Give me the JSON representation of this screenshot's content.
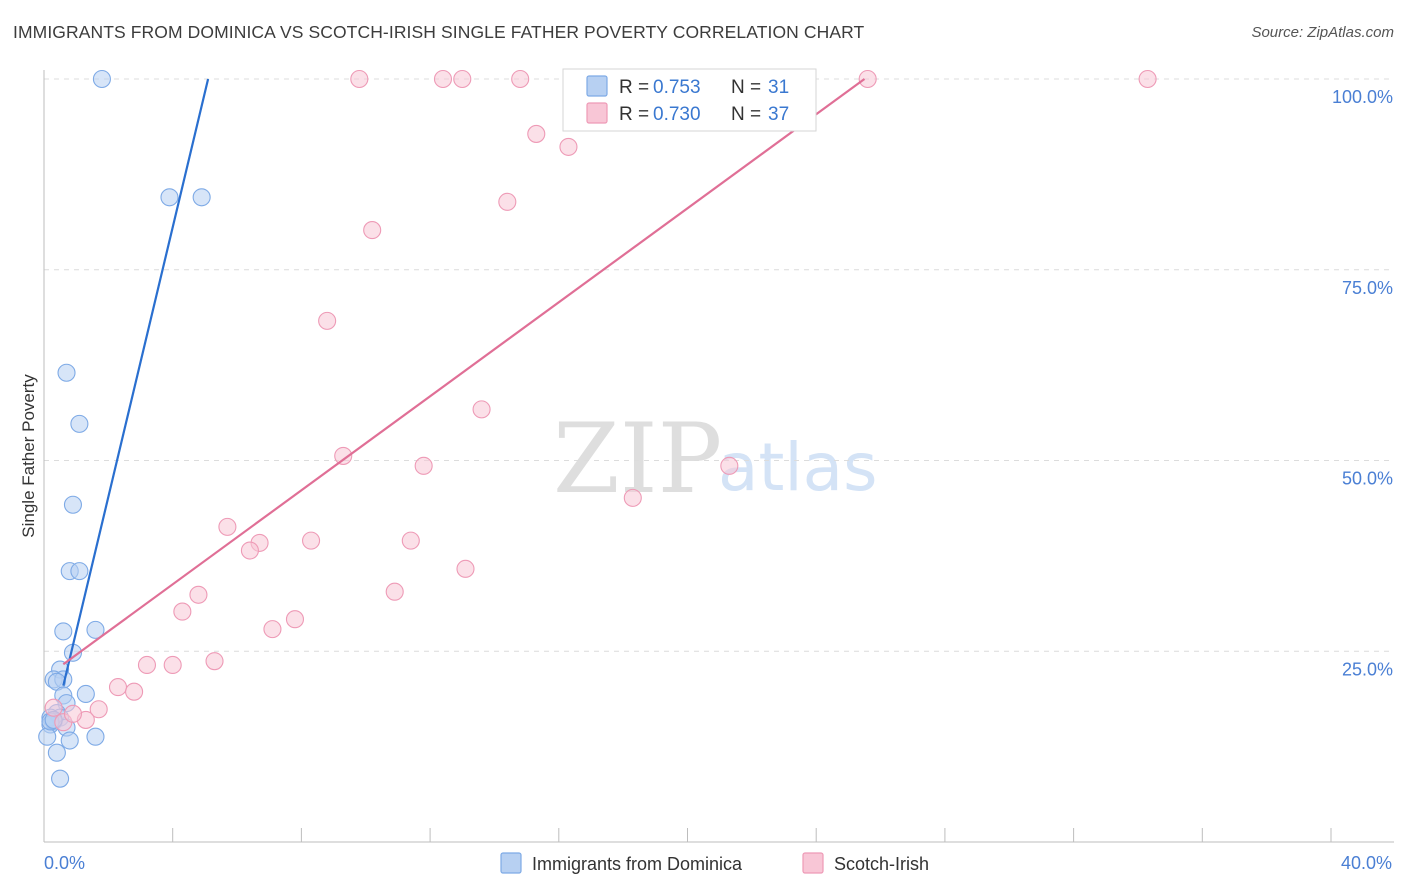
{
  "title": "IMMIGRANTS FROM DOMINICA VS SCOTCH-IRISH SINGLE FATHER POVERTY CORRELATION CHART",
  "source": "Source: ZipAtlas.com",
  "watermark": {
    "zip": "ZIP",
    "atlas": "atlas"
  },
  "chart_data": {
    "type": "scatter",
    "title": "IMMIGRANTS FROM DOMINICA VS SCOTCH-IRISH SINGLE FATHER POVERTY CORRELATION CHART",
    "xlabel": "",
    "ylabel": "Single Father Poverty",
    "xlim": [
      0,
      40
    ],
    "ylim": [
      0,
      100
    ],
    "x_tick_labels": [
      "0.0%",
      "40.0%"
    ],
    "y_ticks": [
      25,
      50,
      75,
      100
    ],
    "y_tick_labels": [
      "25.0%",
      "50.0%",
      "75.0%",
      "100.0%"
    ],
    "grid": true,
    "legend_position": "top-center",
    "series": [
      {
        "name": "Immigrants from Dominica",
        "color": "#7eaae6",
        "fill": "#b7d0f2",
        "line_color": "#2a6fcf",
        "R": "0.753",
        "N": "31",
        "trend": {
          "x": [
            0.6,
            5.1
          ],
          "y": [
            20.5,
            100
          ]
        },
        "points": [
          [
            1.8,
            100
          ],
          [
            3.9,
            84.5
          ],
          [
            4.9,
            84.5
          ],
          [
            0.7,
            61.5
          ],
          [
            1.1,
            54.8
          ],
          [
            0.9,
            44.2
          ],
          [
            0.8,
            35.5
          ],
          [
            1.1,
            35.5
          ],
          [
            0.6,
            27.6
          ],
          [
            1.6,
            27.8
          ],
          [
            0.9,
            24.8
          ],
          [
            0.5,
            22.6
          ],
          [
            0.3,
            21.3
          ],
          [
            0.6,
            21.3
          ],
          [
            0.4,
            21.0
          ],
          [
            1.3,
            19.4
          ],
          [
            0.6,
            19.2
          ],
          [
            0.7,
            18.2
          ],
          [
            0.4,
            16.9
          ],
          [
            0.5,
            16.3
          ],
          [
            0.2,
            16.3
          ],
          [
            0.3,
            15.8
          ],
          [
            0.2,
            15.4
          ],
          [
            0.7,
            15.0
          ],
          [
            1.6,
            13.8
          ],
          [
            0.8,
            13.3
          ],
          [
            0.1,
            13.8
          ],
          [
            0.4,
            11.7
          ],
          [
            0.5,
            8.3
          ],
          [
            0.2,
            15.8
          ],
          [
            0.3,
            16.0
          ]
        ]
      },
      {
        "name": "Scotch-Irish",
        "color": "#ee9ab6",
        "fill": "#f8c6d6",
        "line_color": "#e06f96",
        "R": "0.730",
        "N": "37",
        "trend": {
          "x": [
            0.6,
            25.5
          ],
          "y": [
            23.3,
            100
          ]
        },
        "points": [
          [
            9.8,
            100
          ],
          [
            12.4,
            100
          ],
          [
            13.0,
            100
          ],
          [
            14.8,
            100
          ],
          [
            25.6,
            100
          ],
          [
            34.3,
            100
          ],
          [
            15.3,
            92.8
          ],
          [
            16.3,
            91.1
          ],
          [
            14.4,
            83.9
          ],
          [
            10.2,
            80.2
          ],
          [
            8.8,
            68.3
          ],
          [
            13.6,
            56.7
          ],
          [
            9.3,
            50.6
          ],
          [
            11.8,
            49.3
          ],
          [
            21.3,
            49.3
          ],
          [
            18.3,
            45.1
          ],
          [
            5.7,
            41.3
          ],
          [
            6.7,
            39.2
          ],
          [
            8.3,
            39.5
          ],
          [
            11.4,
            39.5
          ],
          [
            6.4,
            38.2
          ],
          [
            13.1,
            35.8
          ],
          [
            10.9,
            32.8
          ],
          [
            4.8,
            32.4
          ],
          [
            4.3,
            30.2
          ],
          [
            7.8,
            29.2
          ],
          [
            7.1,
            27.9
          ],
          [
            5.3,
            23.7
          ],
          [
            4.0,
            23.2
          ],
          [
            3.2,
            23.2
          ],
          [
            2.3,
            20.3
          ],
          [
            2.8,
            19.7
          ],
          [
            1.7,
            17.4
          ],
          [
            1.3,
            16.0
          ],
          [
            0.6,
            15.7
          ],
          [
            0.9,
            16.8
          ],
          [
            0.3,
            17.6
          ]
        ]
      }
    ]
  }
}
